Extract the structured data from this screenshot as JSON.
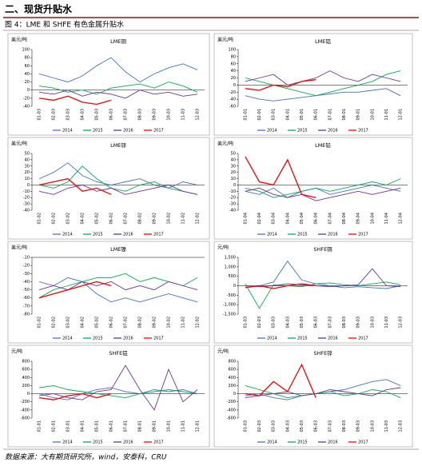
{
  "heading": "二、现货升贴水",
  "caption": "图 4：LME 和 SHFE 有色金属升贴水",
  "source": "数据来源：大有期货研究所，wind，安泰科，CRU",
  "chart_data": [
    {
      "type": "line",
      "title": "LME铜",
      "unit": "美元/吨",
      "categories": [
        "01-03",
        "02-03",
        "03-03",
        "04-03",
        "05-03",
        "06-03",
        "07-03",
        "08-03",
        "09-03",
        "10-03",
        "11-03",
        "12-03"
      ],
      "ylim": [
        -40,
        100
      ],
      "yticks": [
        -40,
        -20,
        0,
        20,
        40,
        60,
        80,
        100
      ],
      "series": [
        {
          "name": "2014",
          "color": "#4472c4",
          "values": [
            40,
            30,
            20,
            35,
            60,
            80,
            45,
            20,
            40,
            55,
            65,
            50
          ]
        },
        {
          "name": "2015",
          "color": "#00b050",
          "values": [
            10,
            5,
            -5,
            0,
            -10,
            5,
            10,
            15,
            5,
            20,
            10,
            -5
          ]
        },
        {
          "name": "2016",
          "color": "#7030a0",
          "values": [
            -5,
            -10,
            0,
            -15,
            -5,
            -10,
            -20,
            0,
            -10,
            -5,
            -15,
            -10
          ]
        },
        {
          "name": "2017",
          "color": "#ff0000",
          "values": [
            -20,
            -25,
            -15,
            -30,
            -35,
            -25,
            null,
            null,
            null,
            null,
            null,
            null
          ]
        }
      ]
    },
    {
      "type": "line",
      "title": "LME铝",
      "unit": "美元/吨",
      "categories": [
        "01-01",
        "02-01",
        "03-01",
        "04-01",
        "05-01",
        "06-01",
        "07-01",
        "08-01",
        "09-01",
        "10-01",
        "11-01",
        "12-01"
      ],
      "ylim": [
        -60,
        100
      ],
      "yticks": [
        -60,
        -40,
        -20,
        0,
        20,
        40,
        60,
        80,
        100
      ],
      "series": [
        {
          "name": "2014",
          "color": "#4472c4",
          "values": [
            -30,
            -40,
            -45,
            -40,
            -35,
            -30,
            -25,
            -20,
            -20,
            -15,
            -10,
            -30
          ]
        },
        {
          "name": "2015",
          "color": "#00b050",
          "values": [
            20,
            10,
            0,
            -10,
            -20,
            -30,
            -20,
            -10,
            0,
            10,
            30,
            40
          ]
        },
        {
          "name": "2016",
          "color": "#7030a0",
          "values": [
            10,
            20,
            30,
            0,
            10,
            20,
            40,
            20,
            10,
            30,
            20,
            10
          ]
        },
        {
          "name": "2017",
          "color": "#ff0000",
          "values": [
            -10,
            -15,
            0,
            -5,
            10,
            15,
            null,
            null,
            null,
            null,
            null,
            null
          ]
        }
      ]
    },
    {
      "type": "line",
      "title": "LME锌",
      "unit": "美元/吨",
      "categories": [
        "01-02",
        "02-02",
        "03-02",
        "04-02",
        "05-02",
        "06-02",
        "07-02",
        "08-02",
        "09-02",
        "10-02",
        "11-02",
        "12-02"
      ],
      "ylim": [
        -40,
        50
      ],
      "yticks": [
        -40,
        -30,
        -20,
        -10,
        0,
        10,
        20,
        30,
        40,
        50
      ],
      "series": [
        {
          "name": "2014",
          "color": "#4472c4",
          "values": [
            10,
            20,
            35,
            15,
            5,
            0,
            5,
            10,
            0,
            -5,
            5,
            0
          ]
        },
        {
          "name": "2015",
          "color": "#00b050",
          "values": [
            0,
            -5,
            5,
            30,
            10,
            -5,
            -10,
            0,
            5,
            -5,
            -10,
            -15
          ]
        },
        {
          "name": "2016",
          "color": "#7030a0",
          "values": [
            -10,
            -15,
            -5,
            0,
            -10,
            -5,
            -15,
            -10,
            -5,
            0,
            -10,
            -15
          ]
        },
        {
          "name": "2017",
          "color": "#ff0000",
          "values": [
            0,
            5,
            10,
            -10,
            -5,
            -15,
            null,
            null,
            null,
            null,
            null,
            null
          ]
        }
      ]
    },
    {
      "type": "line",
      "title": "LME铅",
      "unit": "美元/吨",
      "categories": [
        "01-04",
        "02-04",
        "03-04",
        "04-04",
        "05-04",
        "06-04",
        "07-04",
        "08-04",
        "09-04",
        "10-04",
        "11-04",
        "12-04"
      ],
      "ylim": [
        -40,
        50
      ],
      "yticks": [
        -40,
        -30,
        -20,
        -10,
        0,
        10,
        20,
        30,
        40,
        50
      ],
      "series": [
        {
          "name": "2014",
          "color": "#4472c4",
          "values": [
            -10,
            -15,
            -5,
            -20,
            -10,
            -5,
            -15,
            -10,
            -5,
            0,
            -5,
            -10
          ]
        },
        {
          "name": "2015",
          "color": "#00b050",
          "values": [
            -5,
            -10,
            -20,
            -15,
            -10,
            -5,
            -10,
            -5,
            0,
            5,
            0,
            10
          ]
        },
        {
          "name": "2016",
          "color": "#7030a0",
          "values": [
            -10,
            -5,
            -15,
            -20,
            -15,
            -25,
            -20,
            -15,
            -10,
            -15,
            -10,
            -5
          ]
        },
        {
          "name": "2017",
          "color": "#ff0000",
          "values": [
            45,
            5,
            0,
            40,
            -15,
            -20,
            null,
            null,
            null,
            null,
            null,
            null
          ]
        }
      ]
    },
    {
      "type": "line",
      "title": "LME镍",
      "unit": "美元/吨",
      "categories": [
        "01-02",
        "02-02",
        "03-02",
        "04-02",
        "05-02",
        "06-02",
        "07-02",
        "08-02",
        "09-02",
        "10-02",
        "11-02",
        "12-02"
      ],
      "ylim": [
        -80,
        -10
      ],
      "yticks": [
        -80,
        -70,
        -60,
        -50,
        -40,
        -30,
        -20,
        -10
      ],
      "series": [
        {
          "name": "2014",
          "color": "#4472c4",
          "values": [
            -40,
            -45,
            -35,
            -40,
            -55,
            -65,
            -60,
            -65,
            -60,
            -55,
            -60,
            -65
          ]
        },
        {
          "name": "2015",
          "color": "#00b050",
          "values": [
            -60,
            -50,
            -45,
            -40,
            -35,
            -35,
            -30,
            -40,
            -35,
            -40,
            -45,
            -35
          ]
        },
        {
          "name": "2016",
          "color": "#7030a0",
          "values": [
            -50,
            -45,
            -50,
            -40,
            -45,
            -40,
            -50,
            -45,
            -50,
            -40,
            -45,
            -50
          ]
        },
        {
          "name": "2017",
          "color": "#ff0000",
          "values": [
            -60,
            -55,
            -50,
            -45,
            -40,
            -45,
            null,
            null,
            null,
            null,
            null,
            null
          ]
        }
      ]
    },
    {
      "type": "line",
      "title": "SHFE铜",
      "unit": "元/吨",
      "categories": [
        "01-03",
        "02-03",
        "03-03",
        "04-03",
        "05-03",
        "06-03",
        "07-03",
        "08-03",
        "09-03",
        "10-03",
        "11-03",
        "12-03"
      ],
      "ylim": [
        -1500,
        1500
      ],
      "yticks": [
        {
          "value": -1500,
          "label": "-1,500"
        },
        {
          "value": -1000,
          "label": "-1,000"
        },
        -500,
        0,
        500,
        {
          "value": 1000,
          "label": "1,000"
        },
        {
          "value": 1500,
          "label": "1,500"
        }
      ],
      "series": [
        {
          "name": "2014",
          "color": "#4472c4",
          "values": [
            -100,
            0,
            200,
            1300,
            300,
            100,
            0,
            -100,
            -50,
            -100,
            -150,
            0
          ]
        },
        {
          "name": "2015",
          "color": "#00b050",
          "values": [
            100,
            -1200,
            50,
            0,
            -50,
            100,
            150,
            50,
            0,
            100,
            200,
            50
          ]
        },
        {
          "name": "2016",
          "color": "#7030a0",
          "values": [
            0,
            -50,
            0,
            100,
            50,
            0,
            -50,
            0,
            50,
            900,
            0,
            -50
          ]
        },
        {
          "name": "2017",
          "color": "#ff0000",
          "values": [
            -100,
            0,
            -150,
            0,
            100,
            0,
            null,
            null,
            null,
            null,
            null,
            null
          ]
        }
      ]
    },
    {
      "type": "line",
      "title": "SHFE铝",
      "unit": "元/吨",
      "categories": [
        "01-01",
        "02-01",
        "03-01",
        "04-01",
        "05-01",
        "06-01",
        "07-01",
        "08-01",
        "09-01",
        "10-01",
        "11-01",
        "12-01"
      ],
      "ylim": [
        -600,
        800
      ],
      "yticks": [
        -600,
        -400,
        -200,
        0,
        200,
        400,
        600,
        800
      ],
      "series": [
        {
          "name": "2014",
          "color": "#4472c4",
          "values": [
            0,
            -100,
            -150,
            0,
            100,
            150,
            50,
            0,
            100,
            50,
            100,
            0
          ]
        },
        {
          "name": "2015",
          "color": "#00b050",
          "values": [
            150,
            200,
            100,
            50,
            0,
            -50,
            -100,
            0,
            50,
            100,
            50,
            0
          ]
        },
        {
          "name": "2016",
          "color": "#7030a0",
          "values": [
            -50,
            0,
            -100,
            -150,
            50,
            100,
            700,
            100,
            -400,
            600,
            -200,
            100
          ]
        },
        {
          "name": "2017",
          "color": "#ff0000",
          "values": [
            -100,
            -150,
            -50,
            0,
            -100,
            0,
            null,
            null,
            null,
            null,
            null,
            null
          ]
        }
      ]
    },
    {
      "type": "line",
      "title": "SHFE锌",
      "unit": "元/吨",
      "categories": [
        "01-03",
        "02-03",
        "03-03",
        "04-03",
        "05-03",
        "06-03",
        "07-03",
        "08-03",
        "09-03",
        "10-03",
        "11-03",
        "12-03"
      ],
      "ylim": [
        -600,
        800
      ],
      "yticks": [
        -600,
        -400,
        -200,
        0,
        200,
        400,
        600,
        800
      ],
      "series": [
        {
          "name": "2014",
          "color": "#4472c4",
          "values": [
            -50,
            0,
            -100,
            -150,
            -50,
            0,
            50,
            100,
            200,
            300,
            350,
            200
          ]
        },
        {
          "name": "2015",
          "color": "#00b050",
          "values": [
            200,
            100,
            0,
            -100,
            -50,
            0,
            50,
            -50,
            0,
            100,
            50,
            -100
          ]
        },
        {
          "name": "2016",
          "color": "#7030a0",
          "values": [
            -100,
            -50,
            0,
            50,
            -50,
            0,
            100,
            50,
            0,
            -50,
            100,
            150
          ]
        },
        {
          "name": "2017",
          "color": "#ff0000",
          "values": [
            0,
            -50,
            300,
            50,
            720,
            -100,
            null,
            null,
            null,
            null,
            null,
            null
          ]
        }
      ]
    }
  ]
}
